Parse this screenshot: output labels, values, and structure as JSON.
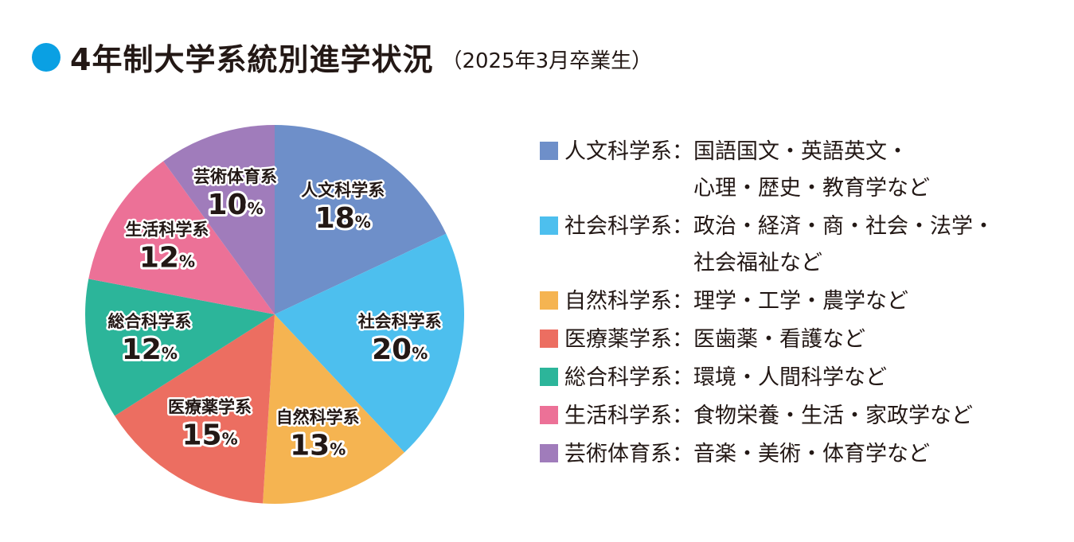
{
  "title": {
    "main": "4年制大学系統別進学状況",
    "sub": "（2025年3月卒業生）"
  },
  "chart_data": {
    "type": "pie",
    "unit": "%",
    "start_angle_deg": 0,
    "direction": "clockwise",
    "series": [
      {
        "name": "人文科学系",
        "value": 18,
        "color": "#6e8fc9",
        "legend_label": "人文科学系：",
        "description": [
          "国語国文・英語英文・",
          "心理・歴史・教育学など"
        ]
      },
      {
        "name": "社会科学系",
        "value": 20,
        "color": "#4dbfee",
        "legend_label": "社会科学系：",
        "description": [
          "政治・経済・商・社会・法学・",
          "社会福祉など"
        ]
      },
      {
        "name": "自然科学系",
        "value": 13,
        "color": "#f5b451",
        "legend_label": "自然科学系：",
        "description": [
          "理学・工学・農学など"
        ]
      },
      {
        "name": "医療薬学系",
        "value": 15,
        "color": "#ec6e61",
        "legend_label": "医療薬学系：",
        "description": [
          "医歯薬・看護など"
        ]
      },
      {
        "name": "総合科学系",
        "value": 12,
        "color": "#2cb59a",
        "legend_label": "総合科学系：",
        "description": [
          "環境・人間科学など"
        ]
      },
      {
        "name": "生活科学系",
        "value": 12,
        "color": "#ec7197",
        "legend_label": "生活科学系：",
        "description": [
          "食物栄養・生活・家政学など"
        ]
      },
      {
        "name": "芸術体育系",
        "value": 10,
        "color": "#a07cbb",
        "legend_label": "芸術体育系：",
        "description": [
          "音楽・美術・体育学など"
        ]
      }
    ]
  }
}
